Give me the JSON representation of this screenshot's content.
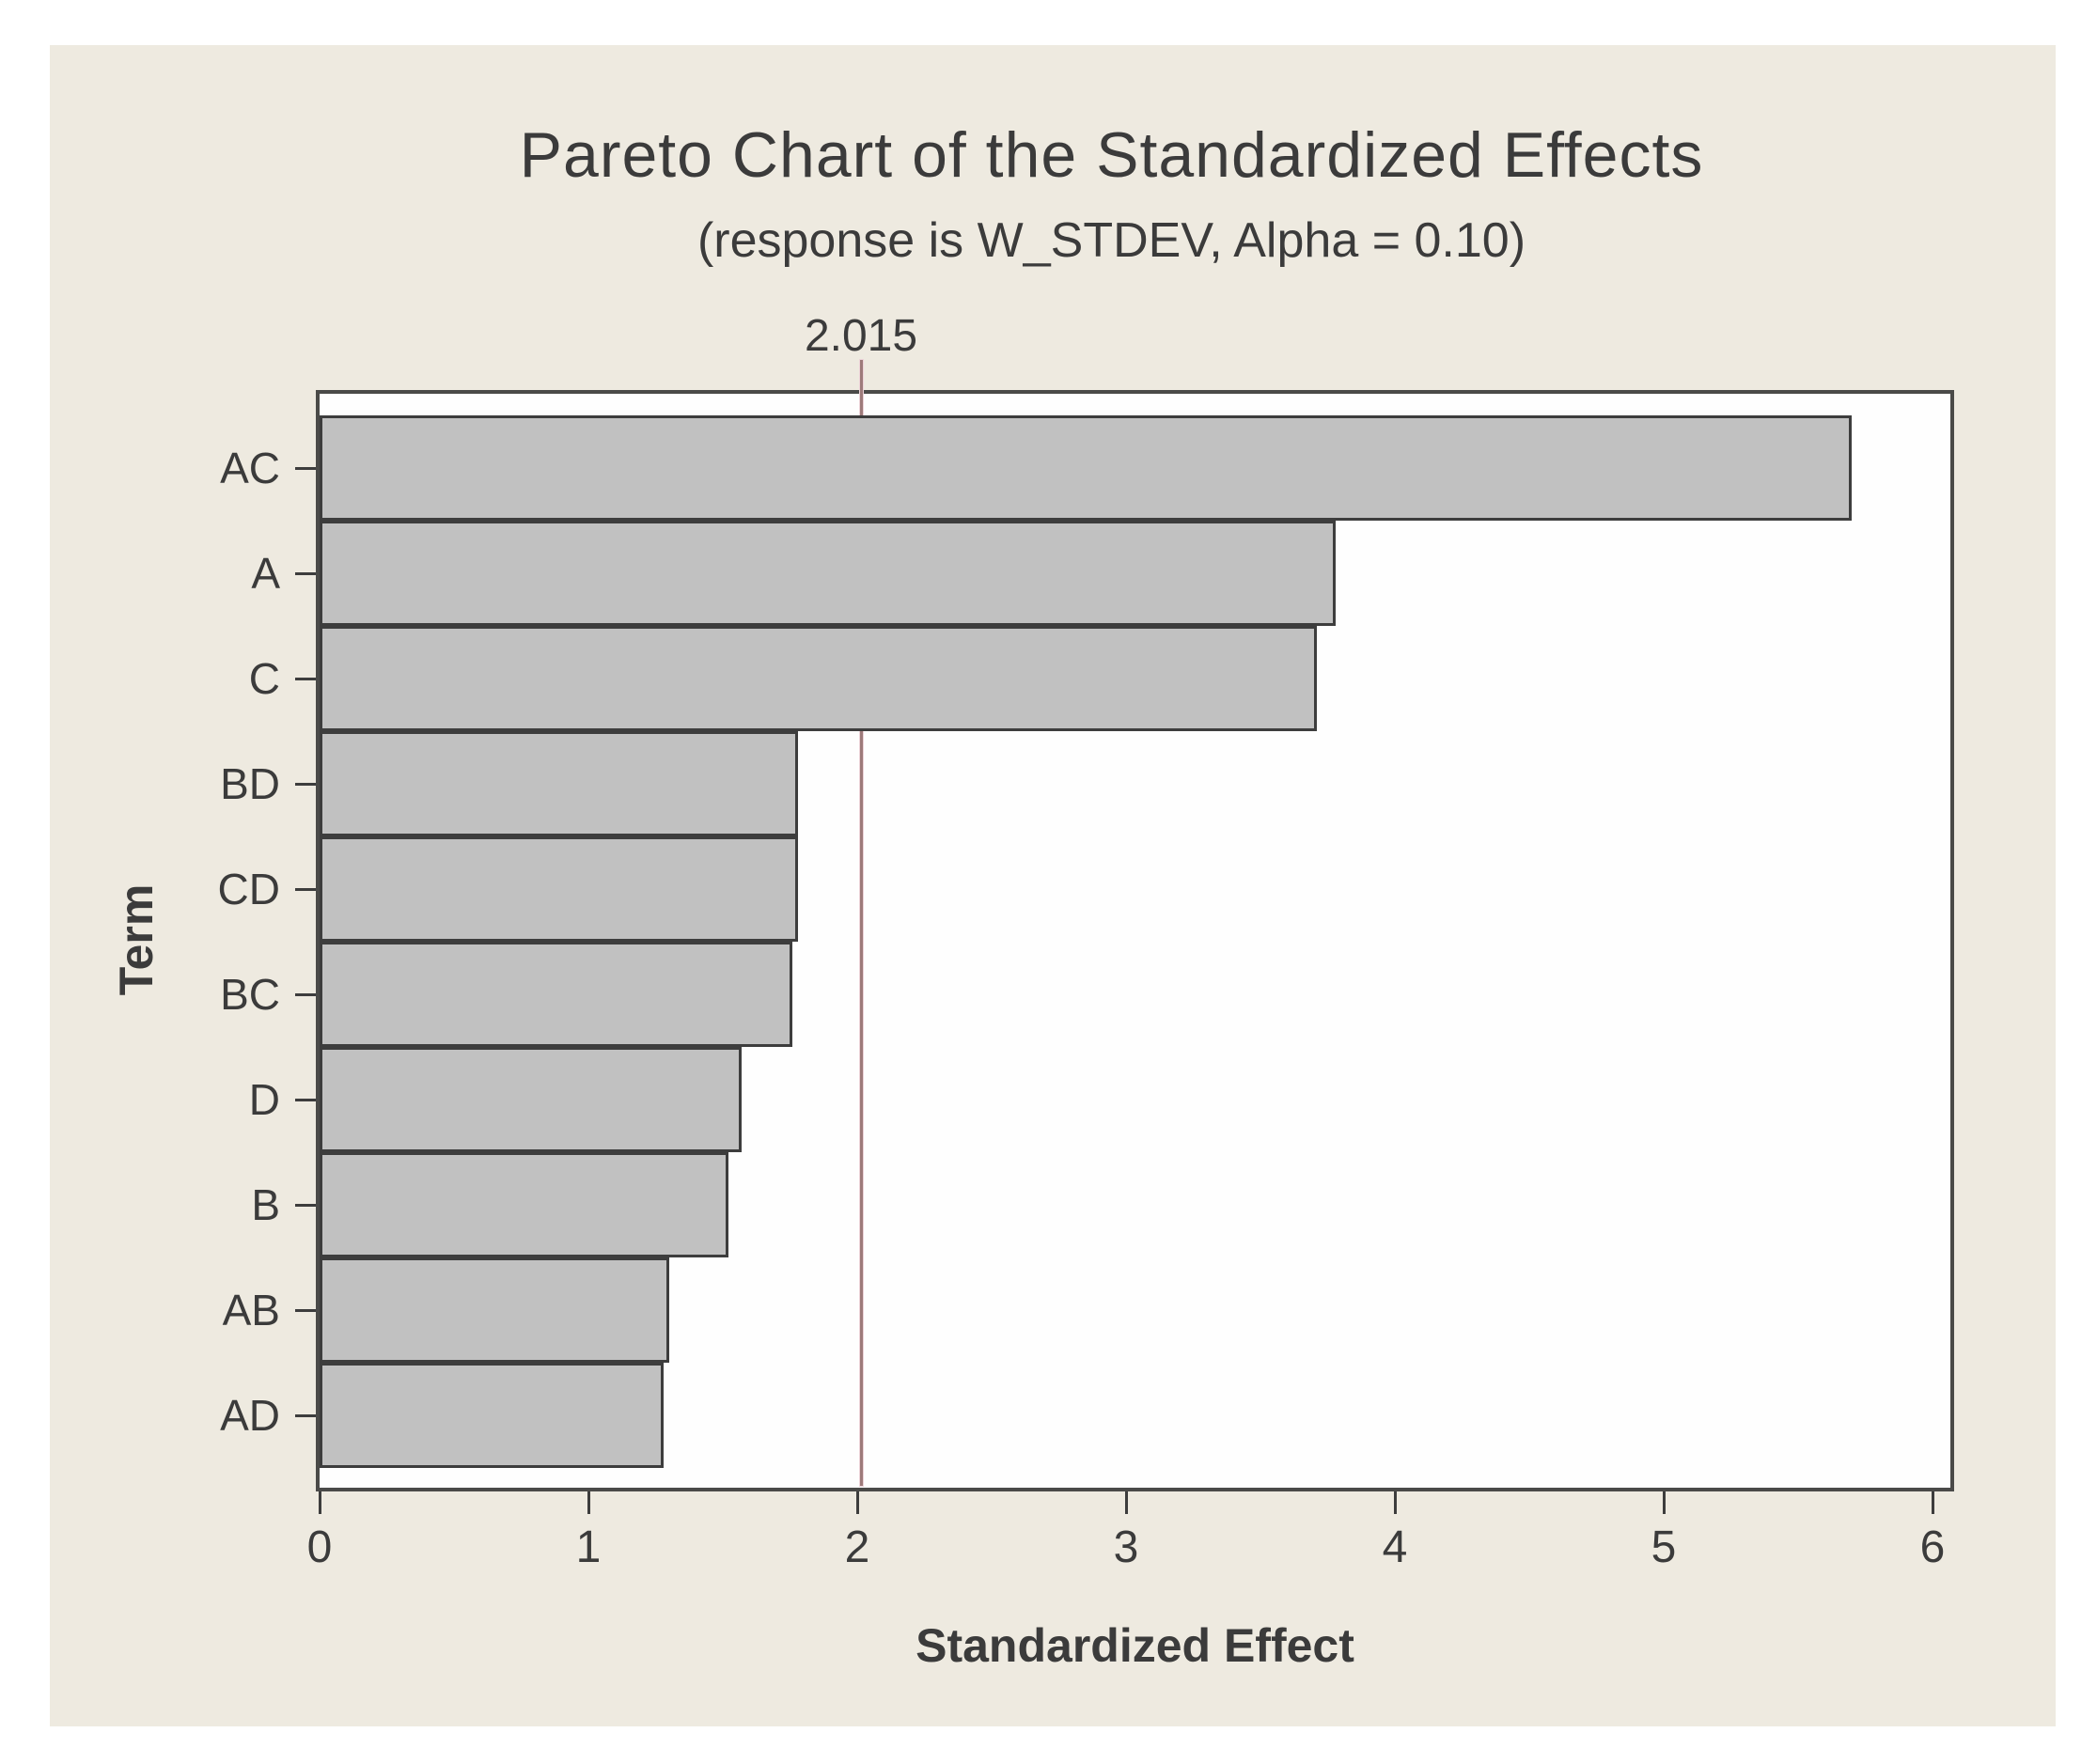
{
  "page": {
    "background": "#ffffff"
  },
  "panel": {
    "background": "#eeeae0"
  },
  "chart_data": {
    "type": "bar",
    "orientation": "horizontal",
    "title": "Pareto Chart of the Standardized Effects",
    "subtitle": "(response is W_STDEV, Alpha = 0.10)",
    "xlabel": "Standardized Effect",
    "ylabel": "Term",
    "categories": [
      "AC",
      "A",
      "C",
      "BD",
      "CD",
      "BC",
      "D",
      "B",
      "AB",
      "AD"
    ],
    "values": [
      5.7,
      3.78,
      3.71,
      1.78,
      1.78,
      1.76,
      1.57,
      1.52,
      1.3,
      1.28
    ],
    "x_ticks": [
      "0",
      "1",
      "2",
      "3",
      "4",
      "5",
      "6"
    ],
    "xlim": [
      0,
      6.07
    ],
    "grid": false,
    "legend": null,
    "reference_line": {
      "value": 2.015,
      "label": "2.015",
      "color": "#9d7a7a"
    },
    "colors": {
      "bar_fill": "#c1c1c1",
      "bar_border": "#3d3d3d",
      "plot_border": "#4a4a48",
      "text": "#3b3b3b",
      "panel_background": "#eeeae0",
      "plot_background": "#fefefe"
    }
  }
}
